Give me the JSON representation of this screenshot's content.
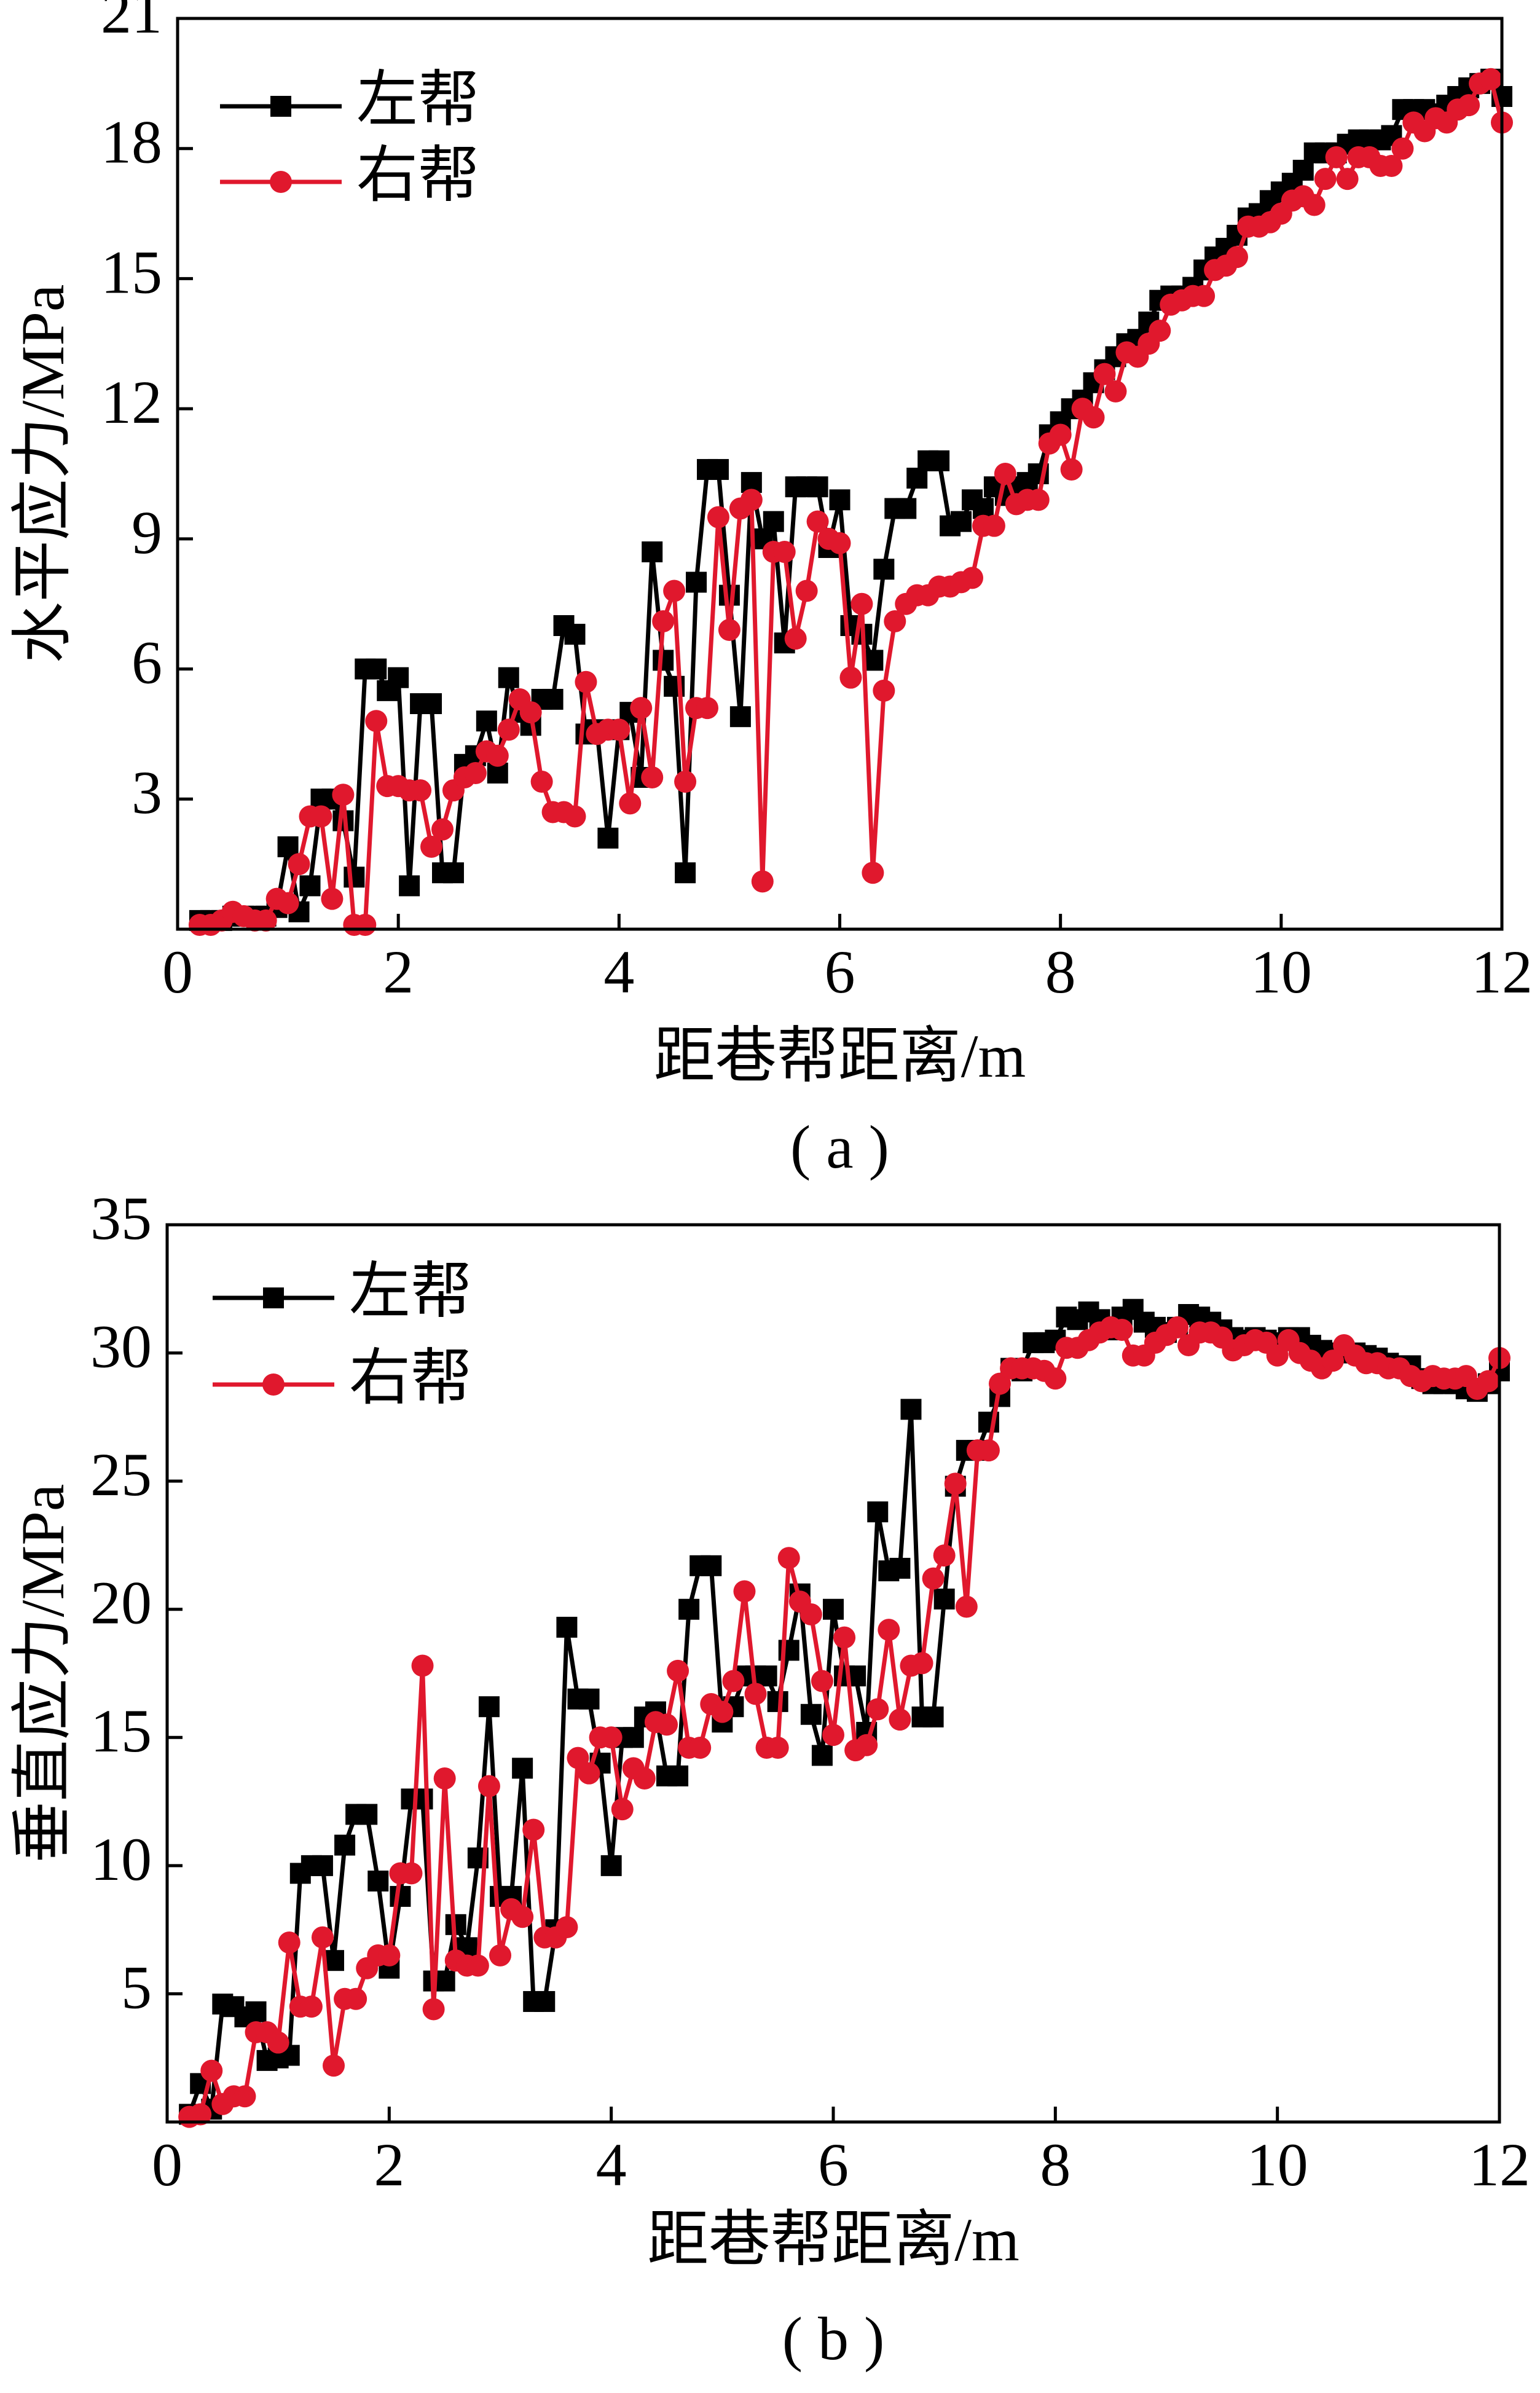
{
  "chart_data": [
    {
      "type": "line",
      "title": "( a )",
      "x_label": "距巷帮距离/m",
      "y_label": "水平应力/MPa",
      "x": [
        0.2,
        0.3,
        0.4,
        0.5,
        0.6,
        0.7,
        0.8,
        0.9,
        1.0,
        1.1,
        1.2,
        1.3,
        1.4,
        1.5,
        1.6,
        1.7,
        1.8,
        1.9,
        2.0,
        2.1,
        2.2,
        2.3,
        2.4,
        2.5,
        2.6,
        2.7,
        2.8,
        2.9,
        3.0,
        3.1,
        3.2,
        3.3,
        3.4,
        3.5,
        3.6,
        3.7,
        3.8,
        3.9,
        4.0,
        4.1,
        4.2,
        4.3,
        4.4,
        4.5,
        4.6,
        4.7,
        4.8,
        4.9,
        5.0,
        5.1,
        5.2,
        5.3,
        5.4,
        5.5,
        5.6,
        5.7,
        5.8,
        5.9,
        6.0,
        6.1,
        6.2,
        6.3,
        6.4,
        6.5,
        6.6,
        6.7,
        6.8,
        6.9,
        7.0,
        7.1,
        7.2,
        7.3,
        7.4,
        7.5,
        7.6,
        7.7,
        7.8,
        7.9,
        8.0,
        8.1,
        8.2,
        8.3,
        8.4,
        8.5,
        8.6,
        8.7,
        8.8,
        8.9,
        9.0,
        9.1,
        9.2,
        9.3,
        9.4,
        9.5,
        9.6,
        9.7,
        9.8,
        9.9,
        10.0,
        10.1,
        10.2,
        10.3,
        10.4,
        10.5,
        10.6,
        10.7,
        10.8,
        10.9,
        11.0,
        11.1,
        11.2,
        11.3,
        11.4,
        11.5,
        11.6,
        11.7,
        11.8,
        11.9,
        12.0
      ],
      "series": [
        {
          "name": "左帮",
          "color": "#000000",
          "marker": "square",
          "values": [
            0.2,
            0.2,
            0.2,
            0.3,
            0.3,
            0.3,
            0.3,
            0.5,
            1.9,
            0.4,
            1.0,
            3.0,
            3.0,
            2.5,
            1.2,
            6.0,
            6.0,
            5.5,
            5.8,
            1.0,
            5.2,
            5.2,
            1.3,
            1.3,
            3.8,
            4.0,
            4.8,
            3.6,
            5.8,
            5.0,
            4.7,
            5.3,
            5.3,
            7.0,
            6.8,
            4.5,
            4.6,
            2.1,
            4.6,
            5.0,
            3.5,
            8.7,
            6.2,
            5.6,
            1.3,
            8.0,
            10.6,
            10.6,
            7.7,
            4.9,
            10.3,
            9.0,
            9.4,
            6.6,
            10.2,
            10.2,
            10.2,
            8.8,
            9.9,
            7.0,
            6.8,
            6.2,
            8.3,
            9.7,
            9.7,
            10.4,
            10.8,
            10.8,
            9.3,
            9.4,
            9.9,
            9.7,
            10.2,
            10.0,
            10.2,
            10.3,
            10.5,
            11.4,
            11.7,
            12.0,
            12.2,
            12.6,
            12.9,
            13.2,
            13.5,
            13.6,
            14.0,
            14.5,
            14.6,
            14.6,
            14.8,
            15.2,
            15.5,
            15.7,
            16.0,
            16.4,
            16.5,
            16.8,
            17.0,
            17.2,
            17.5,
            17.9,
            17.9,
            17.9,
            18.1,
            18.2,
            18.2,
            18.2,
            18.3,
            18.9,
            18.9,
            18.9,
            18.8,
            19.0,
            19.2,
            19.4,
            19.5,
            19.6,
            19.2
          ]
        },
        {
          "name": "右帮",
          "color": "#e0182d",
          "marker": "circle",
          "values": [
            0.1,
            0.1,
            0.2,
            0.4,
            0.3,
            0.2,
            0.2,
            0.7,
            0.6,
            1.5,
            2.6,
            2.6,
            0.7,
            3.1,
            0.1,
            0.1,
            4.8,
            3.3,
            3.3,
            3.2,
            3.2,
            1.9,
            2.3,
            3.2,
            3.5,
            3.6,
            4.1,
            4.0,
            4.6,
            5.3,
            5.0,
            3.4,
            2.7,
            2.7,
            2.6,
            5.7,
            4.5,
            4.6,
            4.6,
            2.9,
            5.1,
            3.5,
            7.1,
            7.8,
            3.4,
            5.1,
            5.1,
            9.5,
            6.9,
            9.7,
            9.9,
            1.1,
            8.7,
            8.7,
            6.7,
            7.8,
            9.4,
            9.0,
            8.9,
            5.8,
            7.5,
            1.3,
            5.5,
            7.1,
            7.5,
            7.7,
            7.7,
            7.9,
            7.9,
            8.0,
            8.1,
            9.3,
            9.3,
            10.5,
            9.8,
            9.9,
            9.9,
            11.2,
            11.4,
            10.6,
            12.0,
            11.8,
            12.8,
            12.4,
            13.3,
            13.2,
            13.5,
            13.8,
            14.4,
            14.5,
            14.6,
            14.6,
            15.2,
            15.3,
            15.5,
            16.2,
            16.2,
            16.3,
            16.5,
            16.8,
            16.9,
            16.7,
            17.3,
            17.8,
            17.3,
            17.8,
            17.8,
            17.6,
            17.6,
            18.0,
            18.6,
            18.4,
            18.7,
            18.6,
            18.9,
            19.0,
            19.5,
            19.6,
            18.6
          ]
        }
      ],
      "xlim": [
        0,
        12
      ],
      "xticks": [
        0,
        2,
        4,
        6,
        8,
        10,
        12
      ],
      "ylim": [
        0,
        21
      ],
      "yticks": [
        3,
        6,
        9,
        12,
        15,
        18,
        21
      ],
      "legend": "upper left",
      "grid": false
    },
    {
      "type": "line",
      "title": "( b )",
      "x_label": "距巷帮距离/m",
      "y_label": "垂直应力/MPa",
      "x": [
        0.2,
        0.3,
        0.4,
        0.5,
        0.6,
        0.7,
        0.8,
        0.9,
        1.0,
        1.1,
        1.2,
        1.3,
        1.4,
        1.5,
        1.6,
        1.7,
        1.8,
        1.9,
        2.0,
        2.1,
        2.2,
        2.3,
        2.4,
        2.5,
        2.6,
        2.7,
        2.8,
        2.9,
        3.0,
        3.1,
        3.2,
        3.3,
        3.4,
        3.5,
        3.6,
        3.7,
        3.8,
        3.9,
        4.0,
        4.1,
        4.2,
        4.3,
        4.4,
        4.5,
        4.6,
        4.7,
        4.8,
        4.9,
        5.0,
        5.1,
        5.2,
        5.3,
        5.4,
        5.5,
        5.6,
        5.7,
        5.8,
        5.9,
        6.0,
        6.1,
        6.2,
        6.3,
        6.4,
        6.5,
        6.6,
        6.7,
        6.8,
        6.9,
        7.0,
        7.1,
        7.2,
        7.3,
        7.4,
        7.5,
        7.6,
        7.7,
        7.8,
        7.9,
        8.0,
        8.1,
        8.2,
        8.3,
        8.4,
        8.5,
        8.6,
        8.7,
        8.8,
        8.9,
        9.0,
        9.1,
        9.2,
        9.3,
        9.4,
        9.5,
        9.6,
        9.7,
        9.8,
        9.9,
        10.0,
        10.1,
        10.2,
        10.3,
        10.4,
        10.5,
        10.6,
        10.7,
        10.8,
        10.9,
        11.0,
        11.1,
        11.2,
        11.3,
        11.4,
        11.5,
        11.6,
        11.7,
        11.8,
        11.9,
        12.0
      ],
      "series": [
        {
          "name": "左帮",
          "color": "#000000",
          "marker": "square",
          "values": [
            0.3,
            1.5,
            0.5,
            4.6,
            4.5,
            4.1,
            4.3,
            2.4,
            2.5,
            2.6,
            9.7,
            10.0,
            10.0,
            6.3,
            10.8,
            12.0,
            12.0,
            9.4,
            6.0,
            8.8,
            12.6,
            12.6,
            5.5,
            5.5,
            7.7,
            6.8,
            10.3,
            16.2,
            8.8,
            8.8,
            13.8,
            4.7,
            4.7,
            7.5,
            19.3,
            16.5,
            16.5,
            14.0,
            10.0,
            15.0,
            15.0,
            15.8,
            16.0,
            13.5,
            13.5,
            20.0,
            21.7,
            21.7,
            15.6,
            16.2,
            17.4,
            17.4,
            17.4,
            16.4,
            18.4,
            20.6,
            15.9,
            14.3,
            20.0,
            17.4,
            17.4,
            15.2,
            23.8,
            21.5,
            21.6,
            27.8,
            15.8,
            15.8,
            20.4,
            24.8,
            26.2,
            26.2,
            27.3,
            28.3,
            29.4,
            29.3,
            30.4,
            30.4,
            30.5,
            31.4,
            31.3,
            31.6,
            31.3,
            30.9,
            31.4,
            31.7,
            31.2,
            31.0,
            30.8,
            31.0,
            31.5,
            31.4,
            31.2,
            30.9,
            30.6,
            30.5,
            30.6,
            30.5,
            30.4,
            30.6,
            30.6,
            30.3,
            30.1,
            30.0,
            30.0,
            30.0,
            29.9,
            29.8,
            29.6,
            29.5,
            29.5,
            29.0,
            28.8,
            28.8,
            28.8,
            28.6,
            28.5,
            28.8,
            29.3
          ]
        },
        {
          "name": "右帮",
          "color": "#e0182d",
          "marker": "circle",
          "values": [
            0.2,
            0.3,
            2.0,
            0.7,
            1.0,
            1.0,
            3.5,
            3.5,
            3.1,
            7.0,
            4.5,
            4.5,
            7.2,
            2.2,
            4.8,
            4.8,
            6.0,
            6.5,
            6.5,
            9.7,
            9.7,
            17.8,
            4.4,
            13.4,
            6.3,
            6.1,
            6.1,
            13.1,
            6.5,
            8.3,
            8.0,
            11.4,
            7.2,
            7.2,
            7.6,
            14.2,
            13.6,
            15.0,
            15.0,
            12.2,
            13.8,
            13.4,
            15.6,
            15.5,
            17.6,
            14.6,
            14.6,
            16.3,
            16.0,
            17.2,
            20.7,
            16.7,
            14.6,
            14.6,
            22.0,
            20.3,
            19.8,
            17.2,
            15.1,
            18.9,
            14.5,
            14.7,
            16.1,
            19.2,
            15.7,
            17.8,
            17.9,
            21.2,
            22.1,
            24.9,
            20.1,
            26.2,
            26.2,
            28.8,
            29.4,
            29.4,
            29.4,
            29.3,
            29.0,
            30.2,
            30.2,
            30.5,
            30.8,
            31.0,
            30.9,
            29.9,
            29.9,
            30.4,
            30.7,
            31.0,
            30.3,
            30.8,
            30.8,
            30.6,
            30.1,
            30.3,
            30.5,
            30.4,
            29.9,
            30.5,
            30.0,
            29.7,
            29.4,
            29.7,
            30.3,
            29.9,
            29.6,
            29.6,
            29.4,
            29.4,
            29.1,
            28.9,
            29.1,
            29.0,
            29.0,
            29.1,
            28.6,
            28.9,
            29.8
          ]
        }
      ],
      "xlim": [
        0,
        12
      ],
      "xticks": [
        0,
        2,
        4,
        6,
        8,
        10,
        12
      ],
      "ylim": [
        0,
        35
      ],
      "yticks": [
        5,
        10,
        15,
        20,
        25,
        30,
        35
      ],
      "legend": "upper left",
      "grid": false
    }
  ]
}
